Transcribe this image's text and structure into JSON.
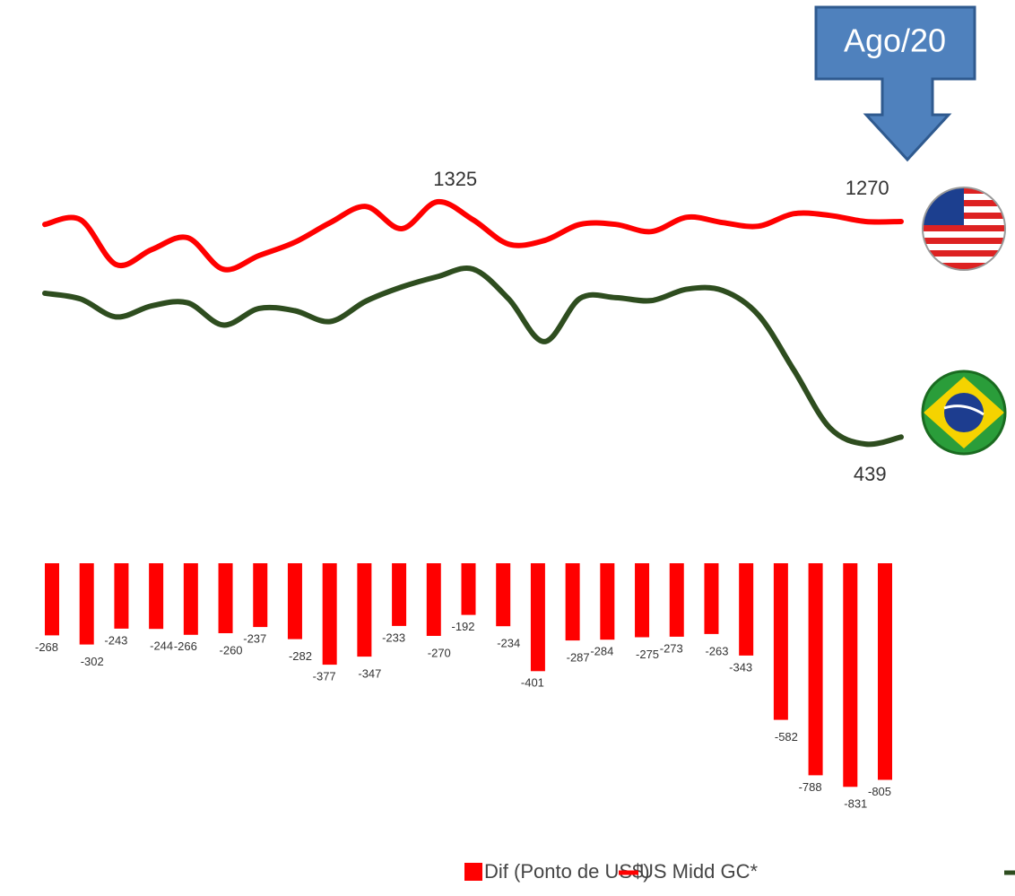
{
  "chart_data": [
    {
      "type": "line",
      "annotations": [
        "Ago/20"
      ],
      "ylim": [
        1062.5,
        1437.5
      ],
      "y2lim": [
        357,
        1149
      ],
      "series": [
        {
          "name": "US Midd GC*",
          "color": "#ff0000",
          "values": [
            1262,
            1275,
            1150,
            1192,
            1225,
            1137,
            1175,
            1212,
            1267,
            1312,
            1250,
            1325,
            1275,
            1207,
            1217,
            1262,
            1262,
            1242,
            1282,
            1267,
            1257,
            1292,
            1287,
            1270,
            1270
          ]
        },
        {
          "color": "#2e4d1f",
          "axis": "y2",
          "values": [
            994,
            973,
            907,
            948,
            959,
            877,
            938,
            930,
            890,
            965,
            1017,
            1055,
            1083,
            973,
            816,
            975,
            978,
            967,
            1009,
            1004,
            914,
            710,
            499,
            439,
            465
          ]
        }
      ]
    },
    {
      "type": "bar",
      "categories": [
        null,
        null,
        null,
        null,
        null,
        null,
        null,
        null,
        null,
        null,
        null,
        null,
        null,
        null,
        null,
        null,
        null,
        null,
        null,
        null,
        null,
        null,
        null,
        null,
        null
      ],
      "ylim": [
        -900,
        0
      ],
      "series": [
        {
          "name": "Dif (Ponto de US$)",
          "color": "#ff0000",
          "values": [
            -268,
            -302,
            -243,
            -244,
            -266,
            -260,
            -237,
            -282,
            -377,
            -347,
            -233,
            -270,
            -192,
            -234,
            -401,
            -287,
            -284,
            -275,
            -273,
            -263,
            -343,
            -582,
            -788,
            -831,
            -805
          ]
        }
      ]
    }
  ]
}
